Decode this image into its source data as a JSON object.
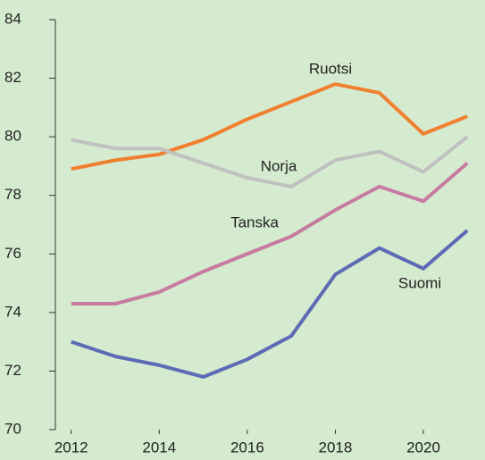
{
  "chart_data": {
    "type": "line",
    "x": [
      2012,
      2013,
      2014,
      2015,
      2016,
      2017,
      2018,
      2019,
      2020,
      2021
    ],
    "series": [
      {
        "name": "Ruotsi",
        "color": "#f07f2f",
        "values": [
          78.9,
          79.2,
          79.4,
          79.9,
          80.6,
          81.2,
          81.8,
          81.5,
          80.1,
          80.7
        ]
      },
      {
        "name": "Norja",
        "color": "#c0c0c0",
        "values": [
          79.9,
          79.6,
          79.6,
          79.1,
          78.6,
          78.3,
          79.2,
          79.5,
          78.8,
          80.0
        ]
      },
      {
        "name": "Tanska",
        "color": "#c77ba0",
        "values": [
          74.3,
          74.3,
          74.7,
          75.4,
          76.0,
          76.6,
          77.5,
          78.3,
          77.8,
          79.1
        ]
      },
      {
        "name": "Suomi",
        "color": "#5b6bb5",
        "values": [
          73.0,
          72.5,
          72.2,
          71.8,
          72.4,
          73.2,
          75.3,
          76.2,
          75.5,
          76.8
        ]
      }
    ],
    "xlim": [
      2011.64,
      2021.4
    ],
    "xticks": [
      2012,
      2014,
      2016,
      2018,
      2020
    ],
    "ylim": [
      70,
      84
    ],
    "yticks": [
      70,
      72,
      74,
      76,
      78,
      80,
      82,
      84
    ]
  }
}
